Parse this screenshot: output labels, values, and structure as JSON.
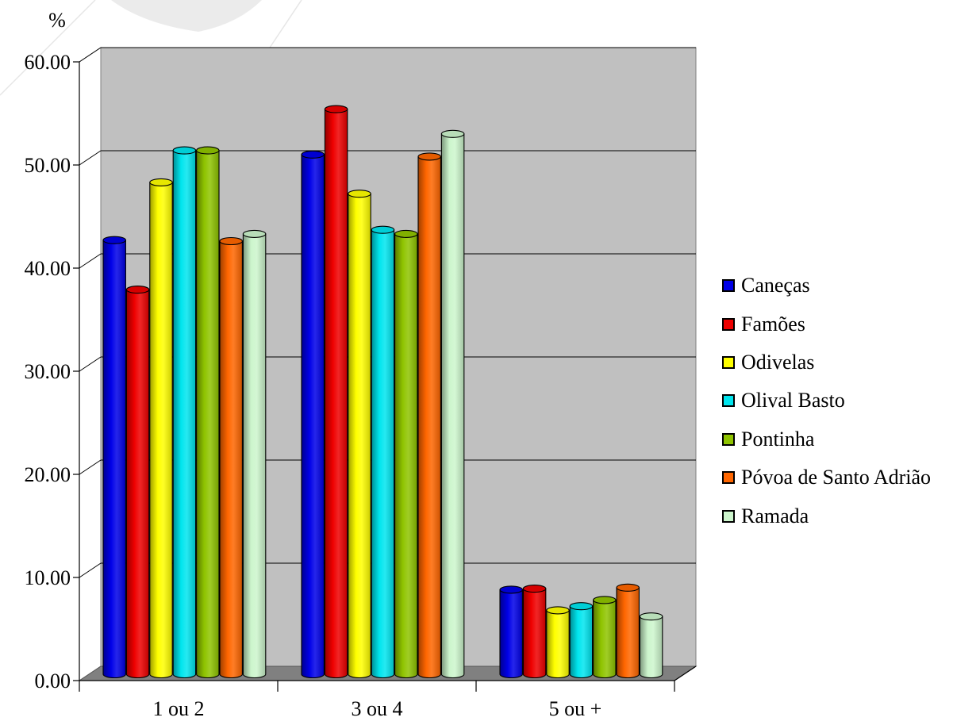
{
  "chart_data": {
    "type": "bar",
    "title": "",
    "xlabel": "",
    "ylabel": "%",
    "ylim": [
      0,
      60
    ],
    "yticks": [
      "0.00",
      "10.00",
      "20.00",
      "30.00",
      "40.00",
      "50.00",
      "60.00"
    ],
    "categories": [
      "1 ou 2",
      "3 ou 4",
      "5 ou +"
    ],
    "series": [
      {
        "name": "Caneças",
        "color": "#0000e8",
        "values": [
          42.1,
          50.4,
          8.2
        ]
      },
      {
        "name": "Famões",
        "color": "#ee0000",
        "values": [
          37.3,
          54.8,
          8.3
        ]
      },
      {
        "name": "Odivelas",
        "color": "#ffff00",
        "values": [
          47.7,
          46.6,
          6.2
        ]
      },
      {
        "name": "Olival Basto",
        "color": "#00e5ee",
        "values": [
          50.8,
          43.1,
          6.6
        ]
      },
      {
        "name": "Pontinha",
        "color": "#8fc400",
        "values": [
          50.8,
          42.7,
          7.2
        ]
      },
      {
        "name": "Póvoa de Santo Adrião",
        "color": "#ff6600",
        "values": [
          42.0,
          50.2,
          8.4
        ]
      },
      {
        "name": "Ramada",
        "color": "#ccf5cc",
        "values": [
          42.7,
          52.4,
          5.6
        ]
      }
    ],
    "grid": true,
    "legend": "right"
  }
}
